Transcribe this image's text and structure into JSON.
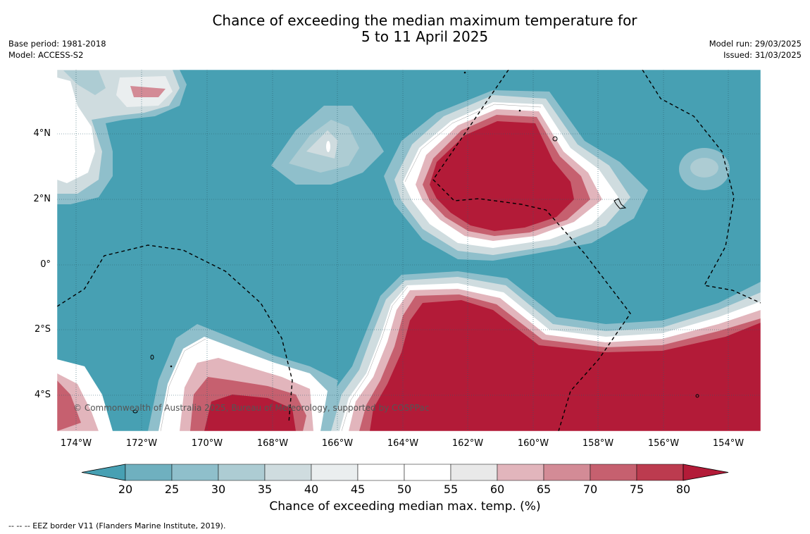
{
  "title_line1": "Chance of exceeding the median maximum temperature for",
  "title_line2": "5 to 11 April 2025",
  "base_period": "Base period: 1981-2018",
  "model": "Model: ACCESS-S2",
  "model_run": "Model run: 29/03/2025",
  "issued": "Issued: 31/03/2025",
  "copyright": "© Commonwealth of Australia 2025, Bureau of Meteorology, supported by COSPPac",
  "lat_labels": [
    "4°N",
    "2°N",
    "0°",
    "2°S",
    "4°S"
  ],
  "lon_labels": [
    "174°W",
    "172°W",
    "170°W",
    "168°W",
    "166°W",
    "164°W",
    "162°W",
    "160°W",
    "158°W",
    "156°W",
    "154°W"
  ],
  "colorbar": {
    "title": "Chance of exceeding median max. temp. (%)",
    "ticks": [
      "20",
      "25",
      "30",
      "35",
      "40",
      "45",
      "50",
      "55",
      "60",
      "65",
      "70",
      "75",
      "80"
    ],
    "colors": [
      "#47a0b3",
      "#6fb0bf",
      "#8fbfcb",
      "#adccd3",
      "#cfdcdf",
      "#eaeeef",
      "#ffffff",
      "#ffffff",
      "#e9e9e9",
      "#e2b5bc",
      "#d38b96",
      "#c6606f",
      "#bc3b4f",
      "#b31b38"
    ]
  },
  "footnote": "--  --  -- EEZ border V11 (Flanders Marine Institute, 2019).",
  "colors": {
    "low": "#47a0b3",
    "high": "#b31b38"
  }
}
